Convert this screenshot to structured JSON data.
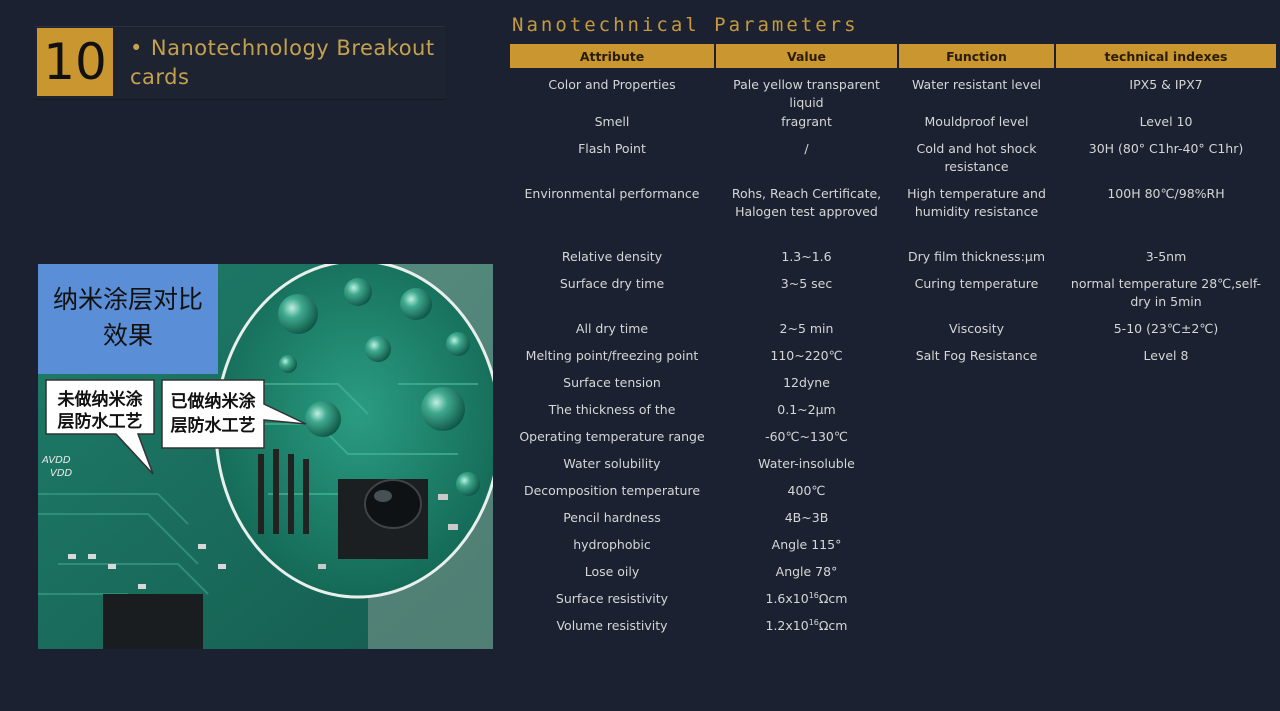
{
  "header": {
    "number": "10",
    "title": "Nanotechnology Breakout cards"
  },
  "table": {
    "title": "Nanotechnical Parameters",
    "columns": [
      "Attribute",
      "Value",
      "Function",
      "technical indexes"
    ],
    "rows": [
      {
        "attribute": "Color and Properties",
        "value": "Pale yellow transparent liquid",
        "function": "Water resistant level",
        "index": "IPX5 & IPX7"
      },
      {
        "attribute": "Smell",
        "value": "fragrant",
        "function": "Mouldproof level",
        "index": "Level 10"
      },
      {
        "attribute": "Flash Point",
        "value": "/",
        "function": "Cold and hot shock resistance",
        "index": "30H (80° C1hr-40° C1hr)"
      },
      {
        "attribute": "Environmental performance",
        "value": "Rohs, Reach Certificate, Halogen test approved",
        "function": "High temperature and humidity resistance",
        "index": "100H 80℃/98%RH"
      },
      {
        "attribute": "Relative density",
        "value": "1.3~1.6",
        "function": "Dry film thickness:μm",
        "index": "3-5nm"
      },
      {
        "attribute": "Surface dry time",
        "value": "3~5 sec",
        "function": "Curing temperature",
        "index": "normal temperature 28℃,self-dry in 5min"
      },
      {
        "attribute": "All dry time",
        "value": "2~5 min",
        "function": "Viscosity",
        "index": "5-10 (23℃±2℃)"
      },
      {
        "attribute": "Melting point/freezing point",
        "value": "110~220℃",
        "function": "Salt Fog Resistance",
        "index": "Level 8"
      },
      {
        "attribute": "Surface tension",
        "value": "12dyne",
        "function": "",
        "index": ""
      },
      {
        "attribute": "The thickness of the",
        "value": "0.1~2μm",
        "function": "",
        "index": ""
      },
      {
        "attribute": "Operating temperature range",
        "value": "-60℃~130℃",
        "function": "",
        "index": ""
      },
      {
        "attribute": "Water solubility",
        "value": "Water-insoluble",
        "function": "",
        "index": ""
      },
      {
        "attribute": "Decomposition temperature",
        "value": "400℃",
        "function": "",
        "index": ""
      },
      {
        "attribute": "Pencil hardness",
        "value": "4B~3B",
        "function": "",
        "index": ""
      },
      {
        "attribute": "hydrophobic",
        "value": "Angle 115°",
        "function": "",
        "index": ""
      },
      {
        "attribute": "Lose oily",
        "value": "Angle 78°",
        "function": "",
        "index": ""
      },
      {
        "attribute": "Surface resistivity",
        "value_base": "1.6x10",
        "value_sup": "16",
        "value_unit": "Ωcm",
        "function": "",
        "index": ""
      },
      {
        "attribute": "Volume resistivity",
        "value_base": "1.2x10",
        "value_sup": "16",
        "value_unit": "Ωcm",
        "function": "",
        "index": ""
      }
    ]
  },
  "photo": {
    "title_line1": "纳米涂层对比",
    "title_line2": "效果",
    "left_bubble_line1": "未做纳米涂",
    "left_bubble_line2": "层防水工艺",
    "right_bubble_line1": "已做纳米涂",
    "right_bubble_line2": "层防水工艺",
    "pcb_label_1": "AVDD",
    "pcb_label_2": "VDD"
  },
  "colors": {
    "background": "#1b2130",
    "accent_gold": "#c9962f",
    "title_gold": "#c59a3f"
  }
}
